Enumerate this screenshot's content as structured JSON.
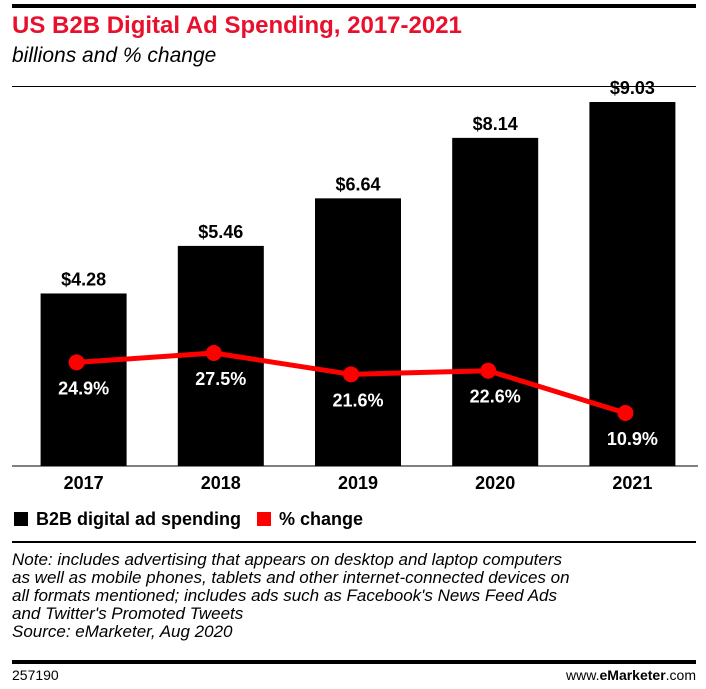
{
  "header": {
    "title": "US B2B Digital Ad Spending, 2017-2021",
    "subtitle": "billions and % change"
  },
  "legend": {
    "bar_label": "B2B digital ad spending",
    "line_label": "% change"
  },
  "note": {
    "lines": [
      "Note: includes advertising that appears on desktop and laptop computers",
      "as well as mobile phones, tablets and other internet-connected devices on",
      "all formats mentioned; includes ads such as Facebook's News Feed Ads",
      "and Twitter's Promoted Tweets",
      "Source: eMarketer, Aug 2020"
    ]
  },
  "footer": {
    "chart_id": "257190",
    "brand_prefix": "www.",
    "brand_bold": "eMarketer",
    "brand_suffix": ".com"
  },
  "colors": {
    "title": "#e8102c",
    "bars": "#000000",
    "line": "#ff0000",
    "text": "#000000",
    "background": "#ffffff"
  },
  "chart_data": {
    "type": "bar",
    "categories": [
      "2017",
      "2018",
      "2019",
      "2020",
      "2021"
    ],
    "series": [
      {
        "name": "B2B digital ad spending",
        "type": "bar",
        "values": [
          4.28,
          5.46,
          6.64,
          8.14,
          9.03
        ],
        "labels": [
          "$4.28",
          "$5.46",
          "$6.64",
          "$8.14",
          "$9.03"
        ]
      },
      {
        "name": "% change",
        "type": "line",
        "values": [
          24.9,
          27.5,
          21.6,
          22.6,
          10.9
        ],
        "labels": [
          "24.9%",
          "27.5%",
          "21.6%",
          "22.6%",
          "10.9%"
        ]
      }
    ],
    "title": "US B2B Digital Ad Spending, 2017-2021",
    "subtitle": "billions and % change",
    "xlabel": "",
    "ylabel": "",
    "ylim": [
      0,
      9.03
    ],
    "grid": false,
    "legend_position": "bottom-left"
  }
}
